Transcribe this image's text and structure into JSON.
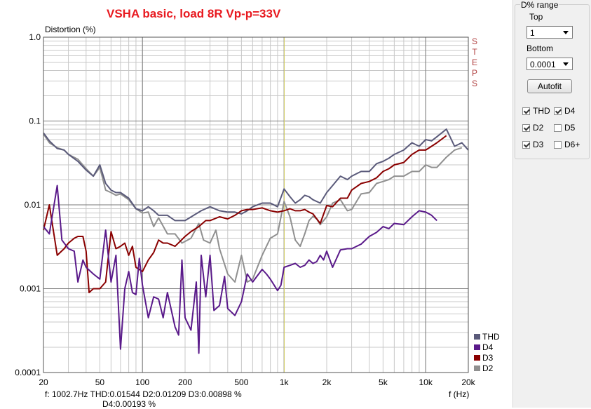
{
  "chart_data": {
    "type": "line",
    "title": "VSHA basic, load 8R Vp-p=33V",
    "ylabel": "Distortion (%)",
    "xlabel": "f (Hz)",
    "xscale": "log",
    "yscale": "log",
    "xlim": [
      20,
      20000
    ],
    "ylim": [
      0.0001,
      1
    ],
    "y_ticks": [
      "1.0",
      "0.1",
      "0.01",
      "0.001",
      "0.0001"
    ],
    "x_ticks": [
      {
        "v": 20,
        "label": "20"
      },
      {
        "v": 50,
        "label": "50"
      },
      {
        "v": 100,
        "label": "100"
      },
      {
        "v": 200,
        "label": "200"
      },
      {
        "v": 500,
        "label": "500"
      },
      {
        "v": 1000,
        "label": "1k"
      },
      {
        "v": 2000,
        "label": "2k"
      },
      {
        "v": 5000,
        "label": "5k"
      },
      {
        "v": 10000,
        "label": "10k"
      },
      {
        "v": 20000,
        "label": "20k"
      }
    ],
    "cursor_x": 1002.7,
    "grid": true,
    "legend_position": "bottom-right",
    "series": [
      {
        "name": "THD",
        "color": "#5a5a7a",
        "points": [
          [
            20,
            0.072
          ],
          [
            22,
            0.058
          ],
          [
            25,
            0.047
          ],
          [
            28,
            0.045
          ],
          [
            30,
            0.04
          ],
          [
            35,
            0.033
          ],
          [
            40,
            0.026
          ],
          [
            45,
            0.022
          ],
          [
            50,
            0.03
          ],
          [
            55,
            0.018
          ],
          [
            60,
            0.015
          ],
          [
            65,
            0.014
          ],
          [
            70,
            0.014
          ],
          [
            80,
            0.012
          ],
          [
            90,
            0.009
          ],
          [
            100,
            0.0085
          ],
          [
            110,
            0.0095
          ],
          [
            120,
            0.0085
          ],
          [
            130,
            0.0075
          ],
          [
            150,
            0.0075
          ],
          [
            170,
            0.0065
          ],
          [
            200,
            0.0065
          ],
          [
            230,
            0.0075
          ],
          [
            260,
            0.0085
          ],
          [
            300,
            0.0095
          ],
          [
            350,
            0.0085
          ],
          [
            400,
            0.0082
          ],
          [
            450,
            0.0082
          ],
          [
            500,
            0.0078
          ],
          [
            550,
            0.0085
          ],
          [
            600,
            0.0095
          ],
          [
            700,
            0.0105
          ],
          [
            800,
            0.0105
          ],
          [
            900,
            0.0095
          ],
          [
            1000,
            0.0155
          ],
          [
            1100,
            0.0125
          ],
          [
            1200,
            0.0105
          ],
          [
            1300,
            0.0115
          ],
          [
            1400,
            0.013
          ],
          [
            1500,
            0.0125
          ],
          [
            1600,
            0.0115
          ],
          [
            1800,
            0.0105
          ],
          [
            2000,
            0.014
          ],
          [
            2200,
            0.017
          ],
          [
            2500,
            0.022
          ],
          [
            2800,
            0.02
          ],
          [
            3000,
            0.022
          ],
          [
            3500,
            0.025
          ],
          [
            4000,
            0.025
          ],
          [
            4500,
            0.031
          ],
          [
            5000,
            0.033
          ],
          [
            5500,
            0.036
          ],
          [
            6000,
            0.04
          ],
          [
            7000,
            0.045
          ],
          [
            8000,
            0.055
          ],
          [
            9000,
            0.05
          ],
          [
            10000,
            0.06
          ],
          [
            11000,
            0.058
          ],
          [
            12000,
            0.065
          ],
          [
            14000,
            0.08
          ],
          [
            16000,
            0.05
          ],
          [
            18000,
            0.055
          ],
          [
            20000,
            0.045
          ]
        ]
      },
      {
        "name": "D4",
        "color": "#5a1a8a",
        "points": [
          [
            20,
            0.0055
          ],
          [
            22,
            0.0045
          ],
          [
            25,
            0.017
          ],
          [
            27,
            0.0038
          ],
          [
            30,
            0.003
          ],
          [
            33,
            0.0028
          ],
          [
            35,
            0.0012
          ],
          [
            38,
            0.0022
          ],
          [
            40,
            0.0018
          ],
          [
            45,
            0.0015
          ],
          [
            50,
            0.0013
          ],
          [
            55,
            0.005
          ],
          [
            60,
            0.0012
          ],
          [
            65,
            0.0025
          ],
          [
            70,
            0.00019
          ],
          [
            75,
            0.001
          ],
          [
            80,
            0.0016
          ],
          [
            85,
            0.0009
          ],
          [
            90,
            0.00085
          ],
          [
            95,
            0.0023
          ],
          [
            100,
            0.0011
          ],
          [
            110,
            0.00045
          ],
          [
            120,
            0.0008
          ],
          [
            130,
            0.00075
          ],
          [
            140,
            0.00045
          ],
          [
            150,
            0.0009
          ],
          [
            170,
            0.00035
          ],
          [
            180,
            0.00028
          ],
          [
            190,
            0.0022
          ],
          [
            200,
            0.00045
          ],
          [
            220,
            0.00032
          ],
          [
            240,
            0.0012
          ],
          [
            250,
            0.00017
          ],
          [
            260,
            0.0025
          ],
          [
            280,
            0.0008
          ],
          [
            300,
            0.0025
          ],
          [
            320,
            0.00055
          ],
          [
            350,
            0.00063
          ],
          [
            380,
            0.0014
          ],
          [
            400,
            0.00058
          ],
          [
            450,
            0.00048
          ],
          [
            500,
            0.0007
          ],
          [
            550,
            0.0015
          ],
          [
            600,
            0.0012
          ],
          [
            700,
            0.0017
          ],
          [
            750,
            0.0015
          ],
          [
            800,
            0.0013
          ],
          [
            900,
            0.00095
          ],
          [
            950,
            0.0011
          ],
          [
            1000,
            0.0018
          ],
          [
            1100,
            0.0019
          ],
          [
            1200,
            0.002
          ],
          [
            1300,
            0.0018
          ],
          [
            1400,
            0.0019
          ],
          [
            1500,
            0.0022
          ],
          [
            1600,
            0.002
          ],
          [
            1700,
            0.0021
          ],
          [
            1800,
            0.0025
          ],
          [
            1900,
            0.0022
          ],
          [
            2000,
            0.0028
          ],
          [
            2200,
            0.0018
          ],
          [
            2500,
            0.0029
          ],
          [
            2800,
            0.003
          ],
          [
            3000,
            0.003
          ],
          [
            3500,
            0.0034
          ],
          [
            4000,
            0.0042
          ],
          [
            4500,
            0.0047
          ],
          [
            5000,
            0.0055
          ],
          [
            5500,
            0.0052
          ],
          [
            6000,
            0.006
          ],
          [
            7000,
            0.0058
          ],
          [
            8000,
            0.0072
          ],
          [
            9000,
            0.0085
          ],
          [
            10000,
            0.0082
          ],
          [
            11000,
            0.0075
          ],
          [
            12000,
            0.0065
          ]
        ]
      },
      {
        "name": "D3",
        "color": "#8a0000",
        "points": [
          [
            20,
            0.005
          ],
          [
            22,
            0.01
          ],
          [
            25,
            0.0025
          ],
          [
            28,
            0.003
          ],
          [
            30,
            0.0035
          ],
          [
            33,
            0.004
          ],
          [
            35,
            0.0042
          ],
          [
            38,
            0.0042
          ],
          [
            40,
            0.0028
          ],
          [
            42,
            0.0009
          ],
          [
            45,
            0.001
          ],
          [
            50,
            0.001
          ],
          [
            55,
            0.0012
          ],
          [
            60,
            0.0048
          ],
          [
            65,
            0.003
          ],
          [
            70,
            0.0032
          ],
          [
            75,
            0.0035
          ],
          [
            80,
            0.0025
          ],
          [
            85,
            0.0032
          ],
          [
            90,
            0.0018
          ],
          [
            100,
            0.0016
          ],
          [
            110,
            0.0022
          ],
          [
            120,
            0.0027
          ],
          [
            130,
            0.0038
          ],
          [
            140,
            0.0035
          ],
          [
            150,
            0.0035
          ],
          [
            170,
            0.0032
          ],
          [
            200,
            0.0042
          ],
          [
            220,
            0.0048
          ],
          [
            250,
            0.0055
          ],
          [
            280,
            0.0065
          ],
          [
            300,
            0.0065
          ],
          [
            350,
            0.0072
          ],
          [
            400,
            0.0068
          ],
          [
            450,
            0.0075
          ],
          [
            500,
            0.0085
          ],
          [
            550,
            0.0088
          ],
          [
            600,
            0.0088
          ],
          [
            700,
            0.0092
          ],
          [
            800,
            0.0085
          ],
          [
            900,
            0.0082
          ],
          [
            1000,
            0.0085
          ],
          [
            1100,
            0.009
          ],
          [
            1200,
            0.0085
          ],
          [
            1300,
            0.0085
          ],
          [
            1400,
            0.0088
          ],
          [
            1500,
            0.0082
          ],
          [
            1600,
            0.0078
          ],
          [
            1800,
            0.006
          ],
          [
            2000,
            0.0098
          ],
          [
            2200,
            0.0095
          ],
          [
            2500,
            0.012
          ],
          [
            2800,
            0.012
          ],
          [
            3000,
            0.015
          ],
          [
            3500,
            0.018
          ],
          [
            4000,
            0.019
          ],
          [
            4500,
            0.021
          ],
          [
            5000,
            0.025
          ],
          [
            5500,
            0.027
          ],
          [
            6000,
            0.03
          ],
          [
            7000,
            0.032
          ],
          [
            8000,
            0.04
          ],
          [
            9000,
            0.045
          ],
          [
            10000,
            0.045
          ],
          [
            11000,
            0.05
          ],
          [
            12000,
            0.055
          ],
          [
            14000,
            0.067
          ]
        ]
      },
      {
        "name": "D2",
        "color": "#909090",
        "points": [
          [
            20,
            0.07
          ],
          [
            22,
            0.055
          ],
          [
            25,
            0.048
          ],
          [
            28,
            0.045
          ],
          [
            30,
            0.04
          ],
          [
            35,
            0.035
          ],
          [
            40,
            0.027
          ],
          [
            45,
            0.022
          ],
          [
            50,
            0.028
          ],
          [
            55,
            0.015
          ],
          [
            60,
            0.014
          ],
          [
            65,
            0.013
          ],
          [
            70,
            0.0135
          ],
          [
            80,
            0.0115
          ],
          [
            90,
            0.009
          ],
          [
            100,
            0.008
          ],
          [
            110,
            0.0082
          ],
          [
            120,
            0.0055
          ],
          [
            130,
            0.007
          ],
          [
            150,
            0.0045
          ],
          [
            170,
            0.0045
          ],
          [
            190,
            0.0035
          ],
          [
            220,
            0.004
          ],
          [
            250,
            0.006
          ],
          [
            270,
            0.0038
          ],
          [
            300,
            0.0035
          ],
          [
            330,
            0.005
          ],
          [
            350,
            0.003
          ],
          [
            400,
            0.0015
          ],
          [
            450,
            0.0012
          ],
          [
            500,
            0.0025
          ],
          [
            550,
            0.0012
          ],
          [
            600,
            0.0013
          ],
          [
            700,
            0.0025
          ],
          [
            800,
            0.004
          ],
          [
            900,
            0.0045
          ],
          [
            1000,
            0.011
          ],
          [
            1100,
            0.0072
          ],
          [
            1200,
            0.0038
          ],
          [
            1300,
            0.0032
          ],
          [
            1400,
            0.0045
          ],
          [
            1500,
            0.0065
          ],
          [
            1600,
            0.0073
          ],
          [
            1700,
            0.0068
          ],
          [
            1800,
            0.0058
          ],
          [
            2000,
            0.0072
          ],
          [
            2200,
            0.0105
          ],
          [
            2500,
            0.0115
          ],
          [
            2800,
            0.0085
          ],
          [
            3000,
            0.0088
          ],
          [
            3500,
            0.0135
          ],
          [
            4000,
            0.014
          ],
          [
            4500,
            0.018
          ],
          [
            5000,
            0.019
          ],
          [
            5500,
            0.02
          ],
          [
            6000,
            0.022
          ],
          [
            7000,
            0.022
          ],
          [
            8000,
            0.025
          ],
          [
            9000,
            0.025
          ],
          [
            10000,
            0.03
          ],
          [
            11000,
            0.028
          ],
          [
            12000,
            0.028
          ],
          [
            14000,
            0.037
          ],
          [
            16000,
            0.045
          ],
          [
            18000,
            0.048
          ]
        ]
      }
    ]
  },
  "readout": {
    "line1": "f: 1002.7Hz     THD:0.01544  D2:0.01209  D3:0.00898 %",
    "line2": "D4:0.00193   %"
  },
  "steps_label": [
    "S",
    "T",
    "E",
    "P",
    "S"
  ],
  "panel": {
    "group_title": "D% range",
    "top_label": "Top",
    "top_value": "1",
    "bottom_label": "Bottom",
    "bottom_value": "0.0001",
    "autofit_label": "Autofit",
    "checkboxes": [
      {
        "label": "THD",
        "checked": true
      },
      {
        "label": "D4",
        "checked": true
      },
      {
        "label": "D2",
        "checked": true
      },
      {
        "label": "D5",
        "checked": false
      },
      {
        "label": "D3",
        "checked": true
      },
      {
        "label": "D6+",
        "checked": false
      }
    ]
  }
}
